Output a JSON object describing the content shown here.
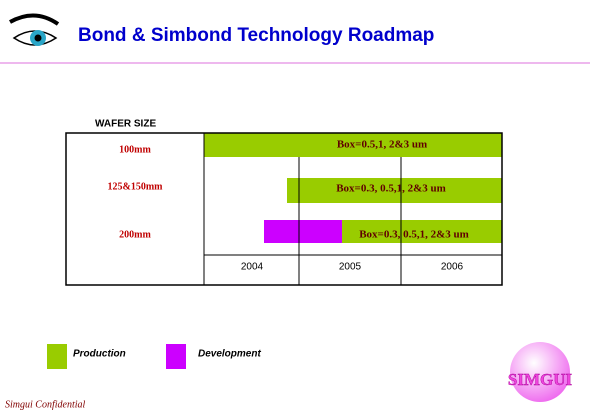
{
  "header": {
    "title": "Bond & Simbond Technology Roadmap"
  },
  "table": {
    "column_header": "WAFER SIZE",
    "rows": [
      {
        "label": "100mm",
        "bar_text": "Box=0.5,1, 2&3 um"
      },
      {
        "label": "125&150mm",
        "bar_text": "Box=0.3, 0.5,1, 2&3 um"
      },
      {
        "label": "200mm",
        "bar_text": "Box=0.3, 0.5,1, 2&3 um"
      }
    ],
    "years": [
      "2004",
      "2005",
      "2006"
    ]
  },
  "legend": [
    "Production",
    "Development"
  ],
  "logo": "SIMGUI",
  "footer": "Simgui Confidential"
}
